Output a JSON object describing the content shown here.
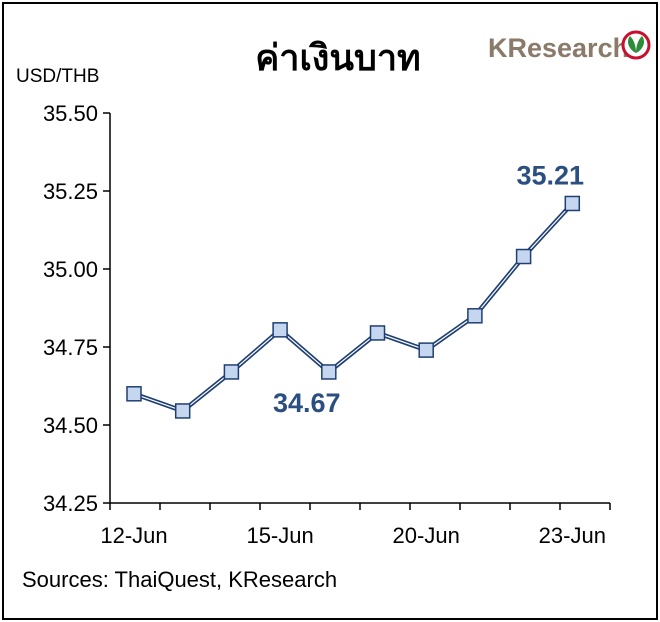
{
  "header": {
    "title": "ค่าเงินบาท",
    "brand": "KResearch"
  },
  "footer": {
    "source": "Sources: ThaiQuest, KResearch"
  },
  "colors": {
    "line": "#1f3f73",
    "marker_fill": "#c5d6ef",
    "label": "#2a4f80",
    "brand_text": "#8a7a6a",
    "logo_ring": "#c8102e",
    "logo_leaf": "#2e8b3a"
  },
  "chart_data": {
    "type": "line",
    "ylabel": "USD/THB",
    "ylim": [
      34.25,
      35.5
    ],
    "yticks": [
      "34.25",
      "34.50",
      "34.75",
      "35.00",
      "35.25",
      "35.50"
    ],
    "xlim": [
      0,
      10
    ],
    "xticks": [
      {
        "i": 0,
        "label": "12-Jun"
      },
      {
        "i": 3,
        "label": "15-Jun"
      },
      {
        "i": 6,
        "label": "20-Jun"
      },
      {
        "i": 9,
        "label": "23-Jun"
      }
    ],
    "series": [
      {
        "values": [
          34.6,
          34.545,
          34.67,
          34.805,
          34.67,
          34.795,
          34.74,
          34.85,
          35.04,
          35.21
        ]
      }
    ],
    "data_labels": [
      {
        "i": 4,
        "text": "34.67"
      },
      {
        "i": 9,
        "text": "35.21"
      }
    ],
    "grid": false,
    "legend": "none"
  }
}
